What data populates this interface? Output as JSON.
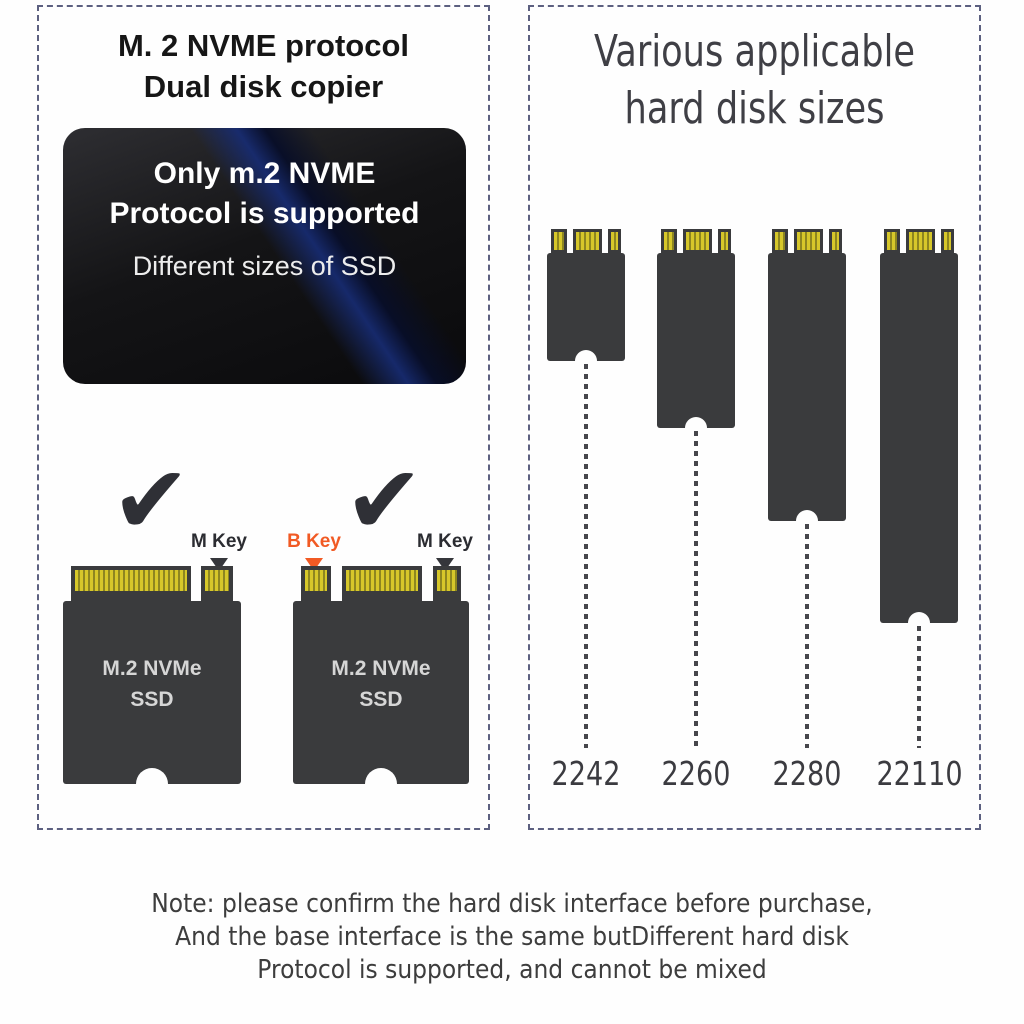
{
  "left_panel": {
    "title_line1": "M. 2 NVME protocol",
    "title_line2": "Dual disk copier",
    "info_box": {
      "heading_line1": "Only m.2 NVME",
      "heading_line2": "Protocol is supported",
      "subheading": "Different sizes of SSD"
    },
    "check_symbol": "✔",
    "cards": [
      {
        "keys": [
          {
            "label": "M Key"
          }
        ],
        "label_line1": "M.2 NVMe",
        "label_line2": "SSD"
      },
      {
        "keys": [
          {
            "label": "B Key"
          },
          {
            "label": "M Key"
          }
        ],
        "label_line1": "M.2 NVMe",
        "label_line2": "SSD"
      }
    ]
  },
  "right_panel": {
    "title_line1": "Various applicable",
    "title_line2": "hard disk sizes",
    "sizes": [
      {
        "label": "2242"
      },
      {
        "label": "2260"
      },
      {
        "label": "2280"
      },
      {
        "label": "22110"
      }
    ]
  },
  "note_line1": "Note: please confirm the hard disk interface before purchase,",
  "note_line2": "And the base interface is the same butDifferent hard disk",
  "note_line3": "Protocol is supported, and cannot be mixed",
  "colors": {
    "b_key_accent": "#F15A24",
    "pin_gold": "#D6C72A",
    "card_body": "#3A3B3D",
    "panel_border": "#5C6080",
    "info_box_streak": "#172C74"
  }
}
